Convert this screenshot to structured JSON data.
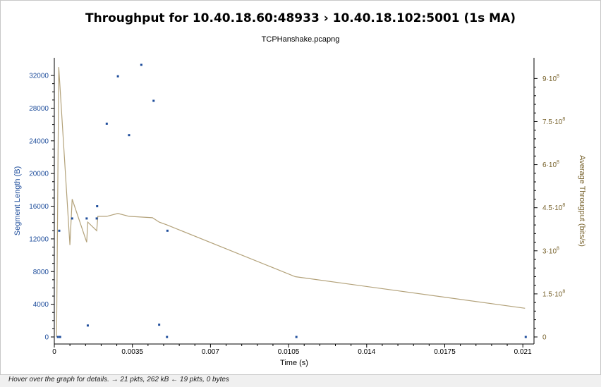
{
  "window": {
    "title": "Throughput for 10.40.18.60:48933   › 10.40.18.102:5001 (1s MA)",
    "subtitle": "TCPHanshake.pcapng",
    "status_text": "Hover over the graph for details. → 21 pkts, 262 kB ← 19 pkts, 0 bytes"
  },
  "colors": {
    "segment": "#1f4e9c",
    "throughput": "#b3a27a",
    "right_axis": "#7a6530",
    "left_axis": "#1f4e9c"
  },
  "chart_data": {
    "type": "scatter",
    "xlabel": "Time (s)",
    "ylabel": "Segment Length (B)",
    "y2label": "Average Througput (bits/s)",
    "xlim": [
      0,
      0.0215
    ],
    "ylim": [
      0,
      34000
    ],
    "y2lim": [
      0,
      960000000.0
    ],
    "x_ticks": [
      0,
      0.0035,
      0.007,
      0.0105,
      0.014,
      0.0175,
      0.021
    ],
    "x_tick_labels": [
      "0",
      "0.0035",
      "0.007",
      "0.0105",
      "0.014",
      "0.0175",
      "0.021"
    ],
    "y_ticks": [
      0,
      4000,
      8000,
      12000,
      16000,
      20000,
      24000,
      28000,
      32000
    ],
    "y_tick_labels": [
      "0",
      "4000",
      "8000",
      "12000",
      "16000",
      "20000",
      "24000",
      "28000",
      "32000"
    ],
    "y2_ticks": [
      0,
      150000000.0,
      300000000.0,
      450000000.0,
      600000000.0,
      750000000.0,
      900000000.0
    ],
    "y2_tick_labels": [
      {
        "base": "0",
        "exp": ""
      },
      {
        "base": "1.5·10",
        "exp": "8"
      },
      {
        "base": "3·10",
        "exp": "8"
      },
      {
        "base": "4.5·10",
        "exp": "8"
      },
      {
        "base": "6·10",
        "exp": "8"
      },
      {
        "base": "7.5·10",
        "exp": "8"
      },
      {
        "base": "9·10",
        "exp": "8"
      }
    ],
    "series": [
      {
        "name": "Segment Length",
        "type": "scatter",
        "axis": "left",
        "points": [
          [
            0.00016,
            0
          ],
          [
            0.00026,
            0
          ],
          [
            0.00022,
            13000
          ],
          [
            0.0008,
            14500
          ],
          [
            0.00145,
            14500
          ],
          [
            0.0015,
            1400
          ],
          [
            0.0019,
            14500
          ],
          [
            0.00192,
            16000
          ],
          [
            0.00235,
            26100
          ],
          [
            0.00285,
            31900
          ],
          [
            0.00335,
            24700
          ],
          [
            0.0039,
            33300
          ],
          [
            0.00445,
            28900
          ],
          [
            0.0047,
            1500
          ],
          [
            0.00507,
            13000
          ],
          [
            0.00505,
            0
          ],
          [
            0.01085,
            0
          ],
          [
            0.02113,
            0
          ]
        ]
      },
      {
        "name": "Average Throughput",
        "type": "line",
        "axis": "right",
        "points": [
          [
            0.0001,
            0
          ],
          [
            0.0002,
            940000000.0
          ],
          [
            0.0007,
            320000000.0
          ],
          [
            0.0008,
            480000000.0
          ],
          [
            0.00145,
            330000000.0
          ],
          [
            0.0015,
            400000000.0
          ],
          [
            0.0019,
            370000000.0
          ],
          [
            0.00195,
            420000000.0
          ],
          [
            0.00235,
            420000000.0
          ],
          [
            0.00285,
            430000000.0
          ],
          [
            0.00335,
            420000000.0
          ],
          [
            0.0044,
            415000000.0
          ],
          [
            0.0047,
            400000000.0
          ],
          [
            0.00505,
            390000000.0
          ],
          [
            0.0108,
            210000000.0
          ],
          [
            0.0211,
            100000000.0
          ]
        ]
      }
    ]
  }
}
